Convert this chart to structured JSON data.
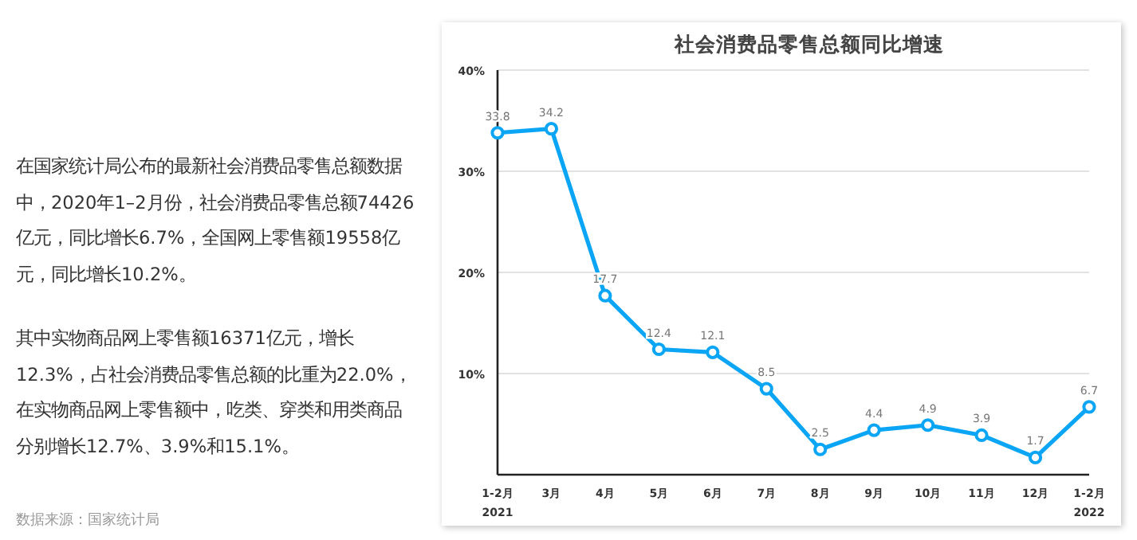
{
  "chart_data": {
    "type": "line",
    "title": "社会消费品零售总额同比增速",
    "categories": [
      "1-2月\n2021",
      "3月",
      "4月",
      "5月",
      "6月",
      "7月",
      "8月",
      "9月",
      "10月",
      "11月",
      "12月",
      "1-2月\n2022"
    ],
    "series": [
      {
        "color": "#0aa5f5",
        "values": [
          33.8,
          34.2,
          17.7,
          12.4,
          12.1,
          8.5,
          2.5,
          4.4,
          4.9,
          3.9,
          1.7,
          6.7
        ]
      }
    ],
    "ylim": [
      0,
      40
    ],
    "yticks": [
      {
        "value": 0,
        "label": null
      },
      {
        "value": 10,
        "label": "10%"
      },
      {
        "value": 20,
        "label": "20%"
      },
      {
        "value": 30,
        "label": "30%"
      },
      {
        "value": 40,
        "label": "40%"
      }
    ],
    "grid": "y",
    "marker": "circle",
    "line_style": "solid",
    "data_labels": true,
    "annotations": [
      "在国家统计局公布的最新社会消费品零售总额数据中，2020年1–2月份，社会消费品零售总额74426亿元，同比增长6.7%，全国网上零售额19558亿元，同比增长10.2%。",
      "其中实物商品网上零售额16371亿元，增长12.3%，占社会消费品零售总额的比重为22.0%，在实物商品网上零售额中，吃类、穿类和用类商品分别增长12.7%、3.9%和15.1%。",
      "数据来源：国家统计局"
    ]
  }
}
